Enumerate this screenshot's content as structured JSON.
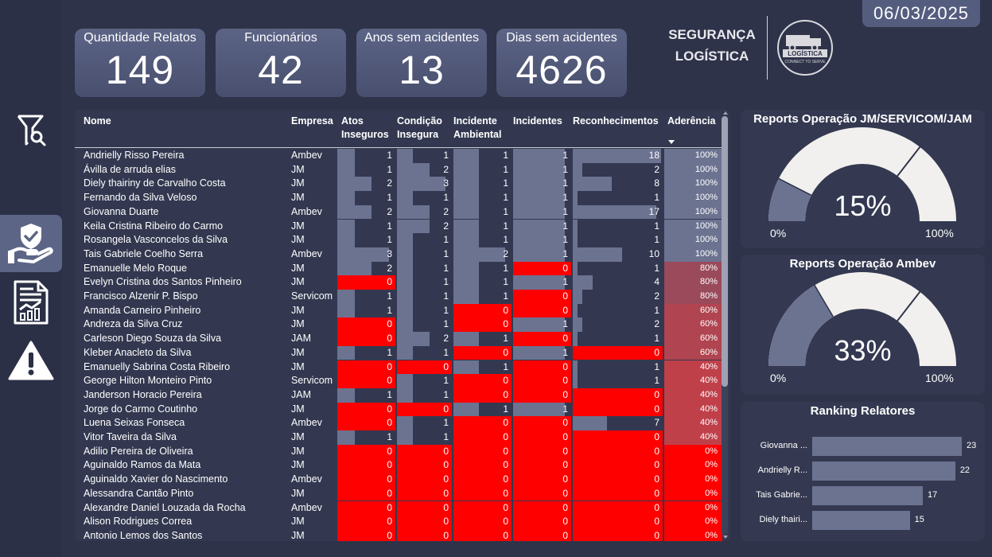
{
  "date": "06/03/2025",
  "kpis": [
    {
      "label": "Quantidade Relatos",
      "value": "149"
    },
    {
      "label": "Funcionários",
      "value": "42"
    },
    {
      "label": "Anos sem acidentes",
      "value": "13"
    },
    {
      "label": "Dias sem acidentes",
      "value": "4626"
    }
  ],
  "brand": {
    "line1": "SEGURANÇA",
    "line2": "LOGÍSTICA",
    "logo_text": "LOGÍSTICA",
    "logo_sub": "CONNECT TO SERVE"
  },
  "sidebar": {
    "items": [
      {
        "name": "filter-search-icon"
      },
      {
        "name": "hand-shield-icon",
        "active": true
      },
      {
        "name": "report-chart-icon"
      },
      {
        "name": "warning-icon"
      }
    ]
  },
  "table": {
    "headers": {
      "nome": "Nome",
      "empresa": "Empresa",
      "atos": [
        "Atos",
        "Inseguros"
      ],
      "condicao": [
        "Condição",
        "Insegura"
      ],
      "incidente_amb": [
        "Incidente",
        "Ambiental"
      ],
      "incidentes": "Incidentes",
      "reconhecimentos": "Reconhecimentos",
      "aderencia": "Aderência"
    },
    "colors": {
      "bar": "#6c7391",
      "zero": "#ff0000",
      "adh_high": "#6c7391",
      "adh_low": "#c0404a"
    },
    "rows": [
      {
        "nome": "Andrielly Risso Pereira",
        "empresa": "Ambev",
        "atos": 1,
        "cond": 1,
        "amb": 1,
        "inc": 1,
        "rec": 18,
        "ader": "100%"
      },
      {
        "nome": "Ávilla de arruda elias",
        "empresa": "JM",
        "atos": 1,
        "cond": 2,
        "amb": 1,
        "inc": 1,
        "rec": 2,
        "ader": "100%"
      },
      {
        "nome": "Diely thairiny de Carvalho Costa",
        "empresa": "JM",
        "atos": 2,
        "cond": 3,
        "amb": 1,
        "inc": 1,
        "rec": 8,
        "ader": "100%"
      },
      {
        "nome": "Fernando da Silva Veloso",
        "empresa": "JM",
        "atos": 1,
        "cond": 1,
        "amb": 1,
        "inc": 1,
        "rec": 1,
        "ader": "100%"
      },
      {
        "nome": "Giovanna Duarte",
        "empresa": "Ambev",
        "atos": 2,
        "cond": 2,
        "amb": 1,
        "inc": 1,
        "rec": 17,
        "ader": "100%"
      },
      {
        "nome": "Keila Cristina Ribeiro do Carmo",
        "empresa": "JM",
        "atos": 1,
        "cond": 2,
        "amb": 1,
        "inc": 1,
        "rec": 1,
        "ader": "100%"
      },
      {
        "nome": "Rosangela Vasconcelos da Silva",
        "empresa": "JM",
        "atos": 1,
        "cond": 1,
        "amb": 1,
        "inc": 1,
        "rec": 1,
        "ader": "100%"
      },
      {
        "nome": "Tais Gabriele Coelho Serra",
        "empresa": "Ambev",
        "atos": 3,
        "cond": 1,
        "amb": 2,
        "inc": 1,
        "rec": 10,
        "ader": "100%"
      },
      {
        "nome": "Emanuelle Melo Roque",
        "empresa": "JM",
        "atos": 2,
        "cond": 1,
        "amb": 1,
        "inc": 0,
        "rec": 1,
        "ader": "80%"
      },
      {
        "nome": "Evelyn Cristina dos Santos Pinheiro",
        "empresa": "JM",
        "atos": 0,
        "cond": 1,
        "amb": 1,
        "inc": 1,
        "rec": 4,
        "ader": "80%"
      },
      {
        "nome": "Francisco Alzenir P. Bispo",
        "empresa": "Servicom",
        "atos": 1,
        "cond": 1,
        "amb": 1,
        "inc": 0,
        "rec": 2,
        "ader": "80%"
      },
      {
        "nome": "Amanda Carneiro Pinheiro",
        "empresa": "JM",
        "atos": 1,
        "cond": 1,
        "amb": 0,
        "inc": 0,
        "rec": 1,
        "ader": "60%"
      },
      {
        "nome": "Andreza da Silva Cruz",
        "empresa": "JM",
        "atos": 0,
        "cond": 1,
        "amb": 0,
        "inc": 1,
        "rec": 2,
        "ader": "60%"
      },
      {
        "nome": "Carleson Diego Souza da Silva",
        "empresa": "JAM",
        "atos": 0,
        "cond": 2,
        "amb": 1,
        "inc": 0,
        "rec": 1,
        "ader": "60%"
      },
      {
        "nome": "Kleber Anacleto da Silva",
        "empresa": "JM",
        "atos": 1,
        "cond": 1,
        "amb": 0,
        "inc": 1,
        "rec": 0,
        "ader": "60%"
      },
      {
        "nome": "Emanuelly Sabrina Costa Ribeiro",
        "empresa": "JM",
        "atos": 0,
        "cond": 0,
        "amb": 1,
        "inc": 0,
        "rec": 1,
        "ader": "40%"
      },
      {
        "nome": "George Hilton Monteiro Pinto",
        "empresa": "Servicom",
        "atos": 0,
        "cond": 1,
        "amb": 0,
        "inc": 0,
        "rec": 1,
        "ader": "40%"
      },
      {
        "nome": "Janderson Horacio Pereira",
        "empresa": "JAM",
        "atos": 1,
        "cond": 1,
        "amb": 0,
        "inc": 0,
        "rec": 0,
        "ader": "40%"
      },
      {
        "nome": "Jorge do Carmo Coutinho",
        "empresa": "JM",
        "atos": 0,
        "cond": 0,
        "amb": 1,
        "inc": 1,
        "rec": 0,
        "ader": "40%"
      },
      {
        "nome": "Luena Seixas Fonseca",
        "empresa": "Ambev",
        "atos": 0,
        "cond": 1,
        "amb": 0,
        "inc": 0,
        "rec": 7,
        "ader": "40%"
      },
      {
        "nome": "Vitor Taveira da Silva",
        "empresa": "JM",
        "atos": 1,
        "cond": 1,
        "amb": 0,
        "inc": 0,
        "rec": 0,
        "ader": "40%"
      },
      {
        "nome": "Adilio Pereira de Oliveira",
        "empresa": "JM",
        "atos": 0,
        "cond": 0,
        "amb": 0,
        "inc": 0,
        "rec": 0,
        "ader": "0%"
      },
      {
        "nome": "Aguinaldo Ramos da Mata",
        "empresa": "JM",
        "atos": 0,
        "cond": 0,
        "amb": 0,
        "inc": 0,
        "rec": 0,
        "ader": "0%"
      },
      {
        "nome": "Aguinaldo Xavier do Nascimento",
        "empresa": "Ambev",
        "atos": 0,
        "cond": 0,
        "amb": 0,
        "inc": 0,
        "rec": 0,
        "ader": "0%"
      },
      {
        "nome": "Alessandra Cantão Pinto",
        "empresa": "JM",
        "atos": 0,
        "cond": 0,
        "amb": 0,
        "inc": 0,
        "rec": 0,
        "ader": "0%"
      },
      {
        "nome": "Alexandre Daniel Louzada da Rocha",
        "empresa": "Ambev",
        "atos": 0,
        "cond": 0,
        "amb": 0,
        "inc": 0,
        "rec": 0,
        "ader": "0%"
      },
      {
        "nome": "Alison Rodrigues Correa",
        "empresa": "JM",
        "atos": 0,
        "cond": 0,
        "amb": 0,
        "inc": 0,
        "rec": 0,
        "ader": "0%"
      },
      {
        "nome": "Antonio Lemos dos Santos",
        "empresa": "JM",
        "atos": 0,
        "cond": 0,
        "amb": 0,
        "inc": 0,
        "rec": 0,
        "ader": "0%"
      }
    ]
  },
  "gauges": [
    {
      "title": "Reports Operação JM/SERVICOM/JAM",
      "value": 0.15,
      "value_label": "15%",
      "target": 0.71,
      "min": "0%",
      "max": "100%",
      "fill": "#6c7391",
      "bg": "#f2f0ee"
    },
    {
      "title": "Reports Operação Ambev",
      "value": 0.33,
      "value_label": "33%",
      "target": 0.71,
      "min": "0%",
      "max": "100%",
      "fill": "#6c7391",
      "bg": "#f2f0ee"
    }
  ],
  "chart_data": {
    "type": "bar",
    "title": "Ranking Relatores",
    "categories": [
      "Giovanna ...",
      "Andrielly R...",
      "Tais Gabrie...",
      "Diely thairi..."
    ],
    "values": [
      23,
      22,
      17,
      15
    ],
    "orientation": "horizontal",
    "color": "#6c7391"
  }
}
